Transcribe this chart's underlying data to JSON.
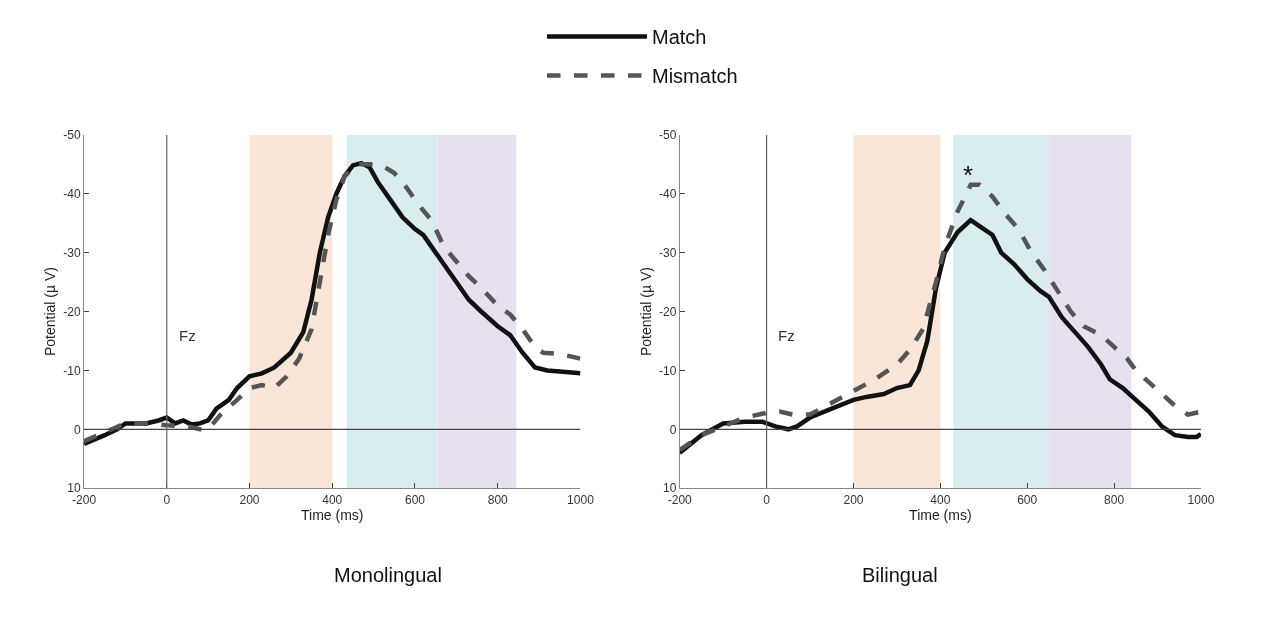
{
  "chart_data": [
    {
      "type": "line",
      "title": "Monolingual",
      "xlabel": "Time (ms)",
      "ylabel": "Potential (µ V)",
      "xlim": [
        -200,
        1000
      ],
      "xticks": [
        -200,
        0,
        200,
        400,
        600,
        800,
        1000
      ],
      "ylim": [
        10,
        -50
      ],
      "yticks": [
        -50,
        -40,
        -30,
        -20,
        -10,
        0,
        10
      ],
      "grid": false,
      "legend": "top",
      "annotations": [
        "Fz"
      ],
      "ref_lines": [
        {
          "axis": "y",
          "value": 0,
          "color": "#444444"
        },
        {
          "axis": "x",
          "value": 0,
          "color": "#666666"
        }
      ],
      "bands": [
        {
          "axis": "x",
          "from": 200,
          "to": 400,
          "color": "#f9e6d8"
        },
        {
          "axis": "x",
          "from": 435,
          "to": 655,
          "color": "#d9ecf0"
        },
        {
          "axis": "x",
          "from": 655,
          "to": 845,
          "color": "#e7e0ee"
        }
      ],
      "series": [
        {
          "name": "Match",
          "color": "#111111",
          "line_style": "solid",
          "x": [
            -200,
            -150,
            -120,
            -100,
            -50,
            -20,
            0,
            20,
            40,
            60,
            80,
            100,
            120,
            150,
            170,
            200,
            230,
            260,
            300,
            330,
            350,
            370,
            390,
            410,
            430,
            450,
            470,
            490,
            510,
            540,
            570,
            600,
            620,
            650,
            680,
            700,
            730,
            760,
            800,
            830,
            860,
            890,
            920,
            950,
            1000
          ],
          "values": [
            2.5,
            1,
            0,
            -1,
            -1,
            -1.5,
            -2,
            -1,
            -1.5,
            -0.8,
            -1,
            -1.5,
            -3.5,
            -5,
            -7,
            -9,
            -9.5,
            -10.5,
            -13,
            -16.5,
            -22,
            -30,
            -36,
            -40,
            -43,
            -44.8,
            -45.2,
            -44.5,
            -42,
            -39,
            -36,
            -34,
            -33,
            -30,
            -27,
            -25,
            -22,
            -20,
            -17.5,
            -16,
            -13,
            -10.5,
            -10,
            -9.8,
            -9.5
          ]
        },
        {
          "name": "Mismatch",
          "color": "#555555",
          "line_style": "dashed",
          "x": [
            -200,
            -150,
            -100,
            -50,
            0,
            50,
            80,
            100,
            130,
            170,
            200,
            230,
            260,
            290,
            320,
            350,
            370,
            390,
            410,
            430,
            460,
            490,
            520,
            550,
            580,
            610,
            640,
            670,
            700,
            730,
            760,
            800,
            830,
            860,
            890,
            910,
            950,
            1000
          ],
          "values": [
            2,
            0.5,
            -1,
            -1,
            -0.7,
            -0.5,
            0,
            0,
            -2.5,
            -5,
            -7,
            -7.5,
            -7,
            -9,
            -12,
            -17,
            -25,
            -33,
            -39,
            -43,
            -45,
            -45,
            -44.8,
            -43.5,
            -41,
            -38,
            -35.5,
            -31,
            -28.5,
            -26,
            -24,
            -21,
            -19.5,
            -17,
            -14,
            -13,
            -12.8,
            -12
          ]
        }
      ]
    },
    {
      "type": "line",
      "title": "Bilingual",
      "xlabel": "Time (ms)",
      "ylabel": "Potential (µ V)",
      "xlim": [
        -200,
        1000
      ],
      "xticks": [
        -200,
        0,
        200,
        400,
        600,
        800,
        1000
      ],
      "ylim": [
        10,
        -50
      ],
      "yticks": [
        -50,
        -40,
        -30,
        -20,
        -10,
        0,
        10
      ],
      "grid": false,
      "legend": "top",
      "annotations": [
        "Fz",
        "*"
      ],
      "ref_lines": [
        {
          "axis": "y",
          "value": 0,
          "color": "#444444"
        },
        {
          "axis": "x",
          "value": 0,
          "color": "#666666"
        }
      ],
      "bands": [
        {
          "axis": "x",
          "from": 200,
          "to": 400,
          "color": "#f9e6d8"
        },
        {
          "axis": "x",
          "from": 430,
          "to": 650,
          "color": "#d9ecf0"
        },
        {
          "axis": "x",
          "from": 650,
          "to": 840,
          "color": "#e7e0ee"
        }
      ],
      "series": [
        {
          "name": "Match",
          "color": "#111111",
          "line_style": "solid",
          "x": [
            -200,
            -150,
            -100,
            -50,
            -10,
            20,
            50,
            70,
            100,
            150,
            200,
            230,
            270,
            300,
            330,
            350,
            370,
            390,
            410,
            440,
            470,
            490,
            520,
            540,
            570,
            600,
            630,
            650,
            680,
            710,
            740,
            770,
            790,
            820,
            850,
            880,
            910,
            940,
            970,
            990,
            1000
          ],
          "values": [
            4,
            1,
            -1,
            -1.3,
            -1.3,
            -0.5,
            0,
            -0.5,
            -2,
            -3.5,
            -5,
            -5.5,
            -6,
            -7,
            -7.5,
            -10,
            -15,
            -24,
            -30,
            -33.5,
            -35.5,
            -34.5,
            -33,
            -30,
            -28,
            -25.5,
            -23.5,
            -22.5,
            -19,
            -16.5,
            -14,
            -11,
            -8.5,
            -7,
            -5,
            -3,
            -0.5,
            1,
            1.3,
            1.3,
            0.8
          ]
        },
        {
          "name": "Mismatch",
          "color": "#555555",
          "line_style": "dashed",
          "x": [
            -200,
            -150,
            -100,
            -50,
            0,
            30,
            60,
            100,
            150,
            200,
            250,
            300,
            330,
            360,
            390,
            410,
            440,
            470,
            490,
            520,
            550,
            580,
            610,
            640,
            670,
            700,
            730,
            770,
            800,
            830,
            850,
            880,
            910,
            940,
            970,
            1000
          ],
          "values": [
            3.5,
            1,
            -0.5,
            -2,
            -2.8,
            -3,
            -2.5,
            -2.5,
            -4.5,
            -6.5,
            -8.5,
            -11,
            -13.5,
            -17,
            -25,
            -31,
            -37,
            -41.5,
            -41.5,
            -39.5,
            -36.5,
            -34,
            -30,
            -27,
            -23.5,
            -20,
            -17.5,
            -16,
            -14,
            -12,
            -10,
            -8,
            -6,
            -4,
            -2.5,
            -3
          ]
        }
      ]
    }
  ]
}
